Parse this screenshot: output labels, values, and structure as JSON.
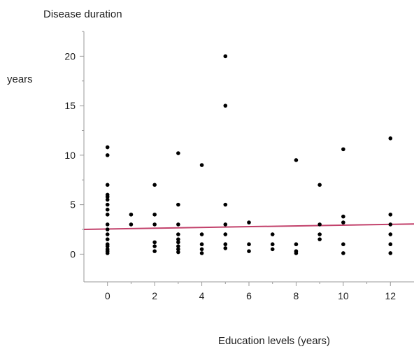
{
  "chart_data": {
    "type": "scatter",
    "title": "Disease duration",
    "ylabel": "years",
    "xlabel": "Education levels (years)",
    "xlim": [
      -1,
      13
    ],
    "ylim": [
      -2.8,
      22.5
    ],
    "xticks": [
      0,
      2,
      4,
      6,
      8,
      10,
      12
    ],
    "yticks": [
      0,
      5,
      10,
      15,
      20
    ],
    "grid": false,
    "legend": "none",
    "colors": {
      "points": "#000000",
      "fit_line": "#c2416b",
      "axis": "#9a9a9a"
    },
    "series": [
      {
        "points": [
          [
            0,
            10.8
          ],
          [
            0,
            10
          ],
          [
            0,
            7
          ],
          [
            0,
            6
          ],
          [
            0,
            5.8
          ],
          [
            0,
            5.5
          ],
          [
            0,
            5
          ],
          [
            0,
            4.5
          ],
          [
            0,
            4
          ],
          [
            0,
            3
          ],
          [
            0,
            2.5
          ],
          [
            0,
            2
          ],
          [
            0,
            1.5
          ],
          [
            0,
            1
          ],
          [
            0,
            0.8
          ],
          [
            0,
            0.5
          ],
          [
            0,
            0.3
          ],
          [
            0,
            0.1
          ],
          [
            1,
            4
          ],
          [
            1,
            3
          ],
          [
            2,
            7
          ],
          [
            2,
            4
          ],
          [
            2,
            3
          ],
          [
            2,
            1.2
          ],
          [
            2,
            0.8
          ],
          [
            2,
            0.3
          ],
          [
            3,
            10.2
          ],
          [
            3,
            5
          ],
          [
            3,
            3
          ],
          [
            3,
            2
          ],
          [
            3,
            1.5
          ],
          [
            3,
            1.2
          ],
          [
            3,
            0.8
          ],
          [
            3,
            0.5
          ],
          [
            3,
            0.2
          ],
          [
            4,
            9
          ],
          [
            4,
            2
          ],
          [
            4,
            1
          ],
          [
            4,
            0.5
          ],
          [
            4,
            0.1
          ],
          [
            5,
            20
          ],
          [
            5,
            15
          ],
          [
            5,
            5
          ],
          [
            5,
            3
          ],
          [
            5,
            2
          ],
          [
            5,
            1
          ],
          [
            5,
            0.6
          ],
          [
            6,
            3.2
          ],
          [
            6,
            1
          ],
          [
            6,
            0.3
          ],
          [
            7,
            2
          ],
          [
            7,
            1
          ],
          [
            7,
            0.5
          ],
          [
            8,
            9.5
          ],
          [
            8,
            1
          ],
          [
            8,
            0.3
          ],
          [
            8,
            0.1
          ],
          [
            9,
            7
          ],
          [
            9,
            3
          ],
          [
            9,
            2
          ],
          [
            9,
            1.5
          ],
          [
            10,
            10.6
          ],
          [
            10,
            3.8
          ],
          [
            10,
            3.2
          ],
          [
            10,
            1
          ],
          [
            10,
            0.1
          ],
          [
            12,
            11.7
          ],
          [
            12,
            4
          ],
          [
            12,
            3
          ],
          [
            12,
            2
          ],
          [
            12,
            1
          ],
          [
            12,
            0.1
          ]
        ]
      }
    ],
    "fit_line": {
      "x": [
        -1,
        13
      ],
      "y": [
        2.5,
        3.05
      ]
    }
  }
}
